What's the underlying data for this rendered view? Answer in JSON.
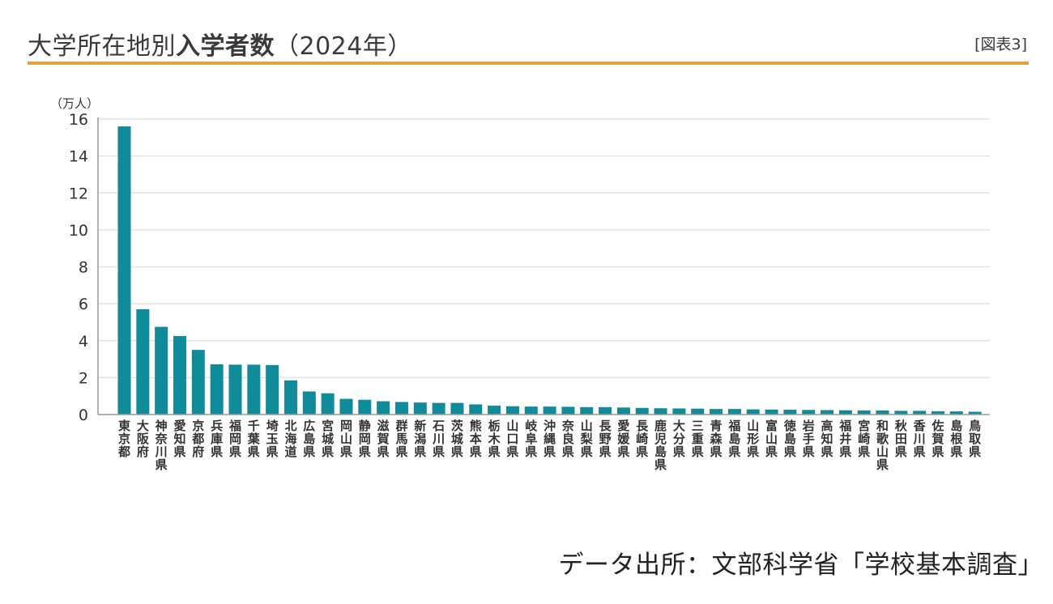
{
  "header": {
    "title_plain": "大学所在地別",
    "title_bold": "入学者数",
    "title_year": "（2024年）",
    "figure_label": "[図表3]"
  },
  "source": "データ出所：文部科学省「学校基本調査」",
  "colors": {
    "bar": "#0f8b99",
    "accent_rule": "#e8a23a",
    "grid": "#e3e3e3",
    "axis": "#999999"
  },
  "chart_data": {
    "type": "bar",
    "title": "大学所在地別入学者数（2024年）",
    "unit_label": "（万人）",
    "xlabel": "",
    "ylabel": "",
    "ylim": [
      0,
      16
    ],
    "yticks": [
      0,
      2,
      4,
      6,
      8,
      10,
      12,
      14,
      16
    ],
    "grid": true,
    "categories": [
      "東京都",
      "大阪府",
      "神奈川県",
      "愛知県",
      "京都府",
      "兵庫県",
      "福岡県",
      "千葉県",
      "埼玉県",
      "北海道",
      "広島県",
      "宮城県",
      "岡山県",
      "静岡県",
      "滋賀県",
      "群馬県",
      "新潟県",
      "石川県",
      "茨城県",
      "熊本県",
      "栃木県",
      "山口県",
      "岐阜県",
      "沖縄県",
      "奈良県",
      "山梨県",
      "長野県",
      "愛媛県",
      "長崎県",
      "鹿児島県",
      "大分県",
      "三重県",
      "青森県",
      "福島県",
      "山形県",
      "富山県",
      "徳島県",
      "岩手県",
      "高知県",
      "福井県",
      "宮崎県",
      "和歌山県",
      "秋田県",
      "香川県",
      "佐賀県",
      "島根県",
      "鳥取県"
    ],
    "values": [
      15.6,
      5.7,
      4.75,
      4.25,
      3.5,
      2.72,
      2.7,
      2.7,
      2.68,
      1.85,
      1.25,
      1.15,
      0.85,
      0.8,
      0.72,
      0.68,
      0.65,
      0.63,
      0.63,
      0.55,
      0.48,
      0.45,
      0.43,
      0.43,
      0.42,
      0.4,
      0.4,
      0.38,
      0.36,
      0.34,
      0.33,
      0.32,
      0.3,
      0.3,
      0.28,
      0.27,
      0.26,
      0.25,
      0.24,
      0.23,
      0.22,
      0.22,
      0.2,
      0.2,
      0.18,
      0.17,
      0.15
    ]
  }
}
